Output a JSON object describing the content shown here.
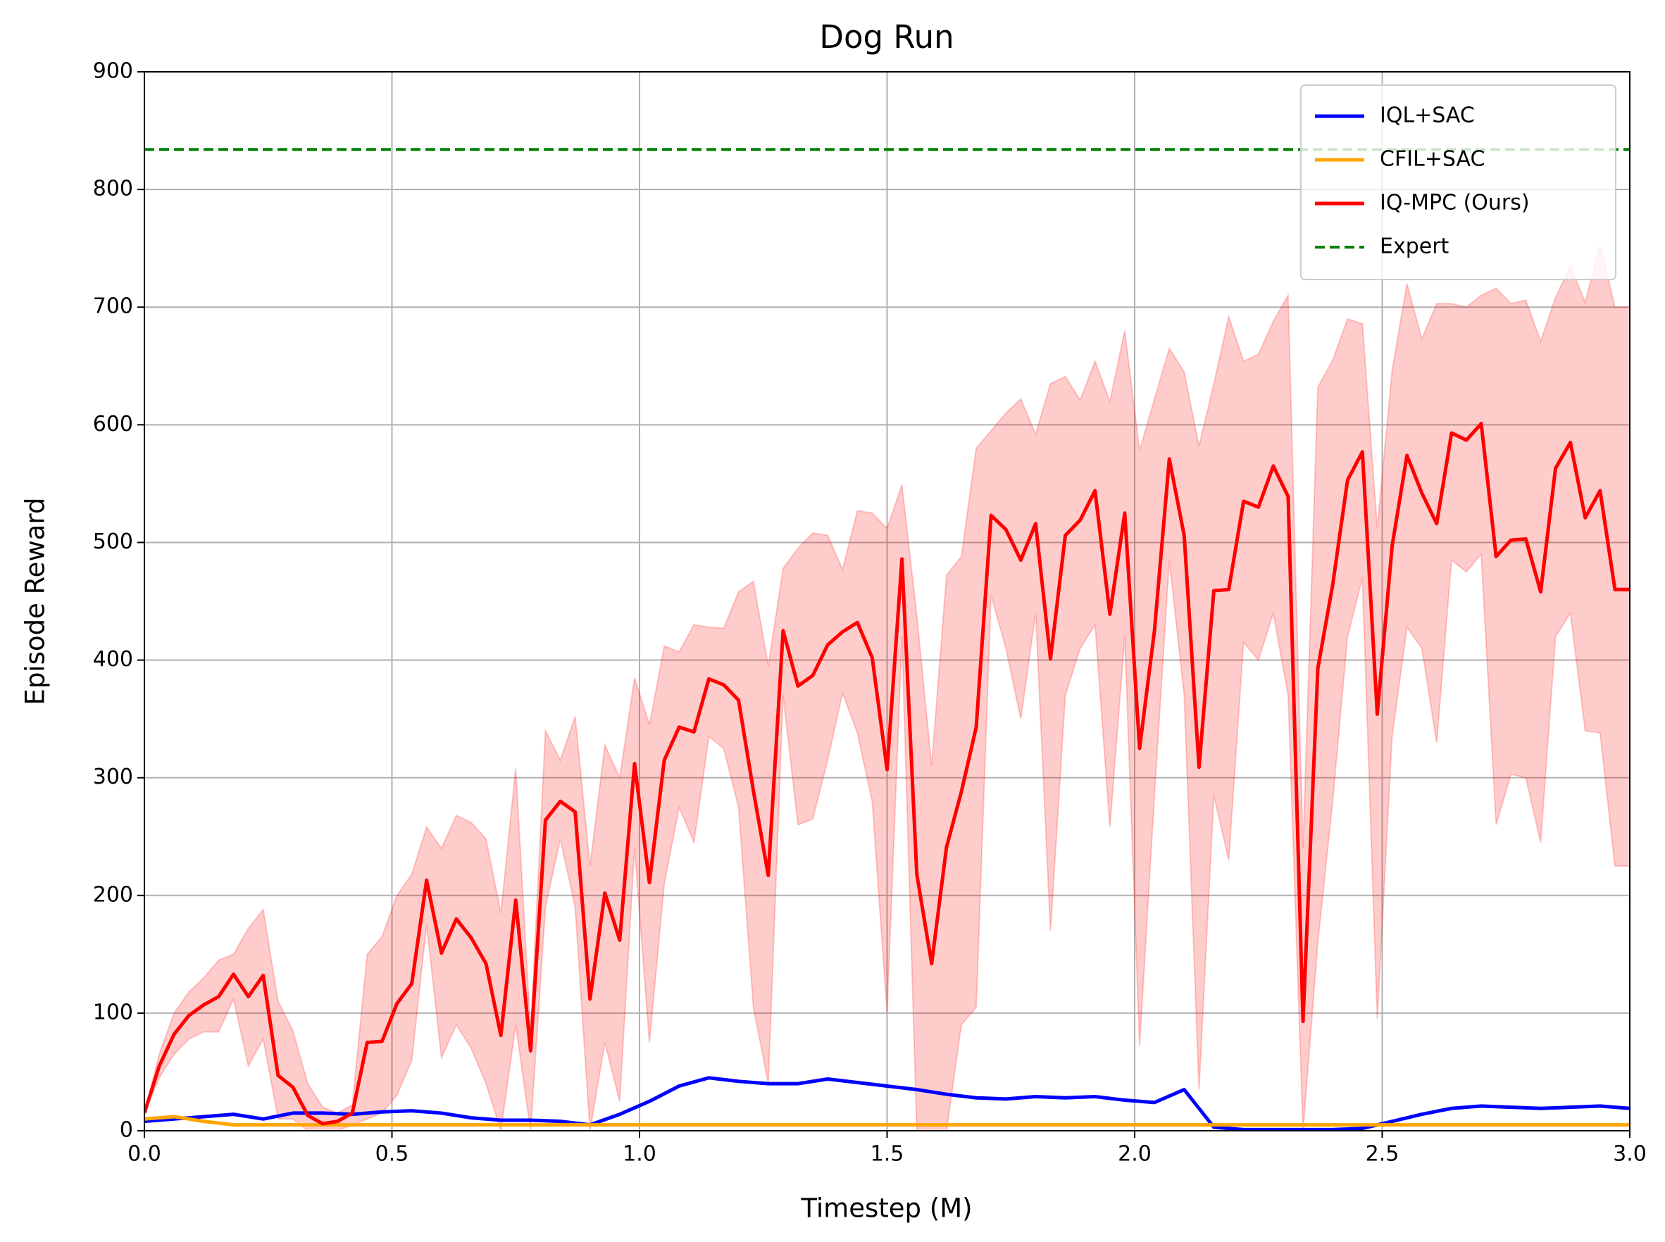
{
  "chart_data": {
    "type": "line",
    "title": "Dog Run",
    "x_label": "Timestep (M)",
    "y_label": "Episode Reward",
    "xlim": [
      0,
      3
    ],
    "ylim": [
      0,
      900
    ],
    "xticks": [
      {
        "value": 0,
        "label": "0.0"
      },
      0.5,
      {
        "value": 1,
        "label": "1.0"
      },
      1.5,
      {
        "value": 2,
        "label": "2.0"
      },
      2.5,
      {
        "value": 3,
        "label": "3.0"
      }
    ],
    "yticks": [
      0,
      100,
      200,
      300,
      400,
      500,
      600,
      700,
      800,
      900
    ],
    "grid": true,
    "legend": "upper right",
    "series": [
      {
        "name": "IQL+SAC",
        "color": "#0000ff",
        "x": [
          0,
          0.06,
          0.12,
          0.18,
          0.24,
          0.3,
          0.36,
          0.42,
          0.48,
          0.54,
          0.6,
          0.66,
          0.72,
          0.78,
          0.84,
          0.9,
          0.96,
          1.02,
          1.08,
          1.14,
          1.2,
          1.26,
          1.32,
          1.38,
          1.44,
          1.5,
          1.56,
          1.62,
          1.68,
          1.74,
          1.8,
          1.86,
          1.92,
          1.98,
          2.04,
          2.1,
          2.16,
          2.22,
          2.28,
          2.34,
          2.4,
          2.46,
          2.52,
          2.58,
          2.64,
          2.7,
          2.76,
          2.82,
          2.88,
          2.94,
          3.0
        ],
        "values": [
          8,
          10,
          12,
          14,
          10,
          15,
          15,
          14,
          16,
          17,
          15,
          11,
          9,
          9,
          8,
          5,
          14,
          25,
          38,
          45,
          42,
          40,
          40,
          44,
          41,
          38,
          35,
          31,
          28,
          27,
          29,
          28,
          29,
          26,
          24,
          35,
          3,
          1,
          1,
          1,
          1,
          2,
          8,
          14,
          19,
          21,
          20,
          19,
          20,
          21,
          19
        ]
      },
      {
        "name": "CFIL+SAC",
        "color": "#ffa500",
        "x": [
          0,
          0.06,
          0.12,
          0.18,
          0.24,
          0.3,
          0.36,
          0.42,
          0.48,
          0.54,
          0.6,
          0.66,
          0.72,
          0.78,
          0.84,
          0.9,
          0.96,
          1.02,
          1.08,
          1.14,
          1.2,
          1.26,
          1.32,
          1.38,
          1.44,
          1.5,
          1.56,
          1.62,
          1.68,
          1.74,
          1.8,
          1.86,
          1.92,
          1.98,
          2.04,
          2.1,
          2.16,
          2.22,
          2.28,
          2.34,
          2.4,
          2.46,
          2.52,
          2.58,
          2.64,
          2.7,
          2.76,
          2.82,
          2.88,
          2.94,
          3.0
        ],
        "values": [
          10,
          12,
          8,
          5,
          5,
          5,
          5,
          5,
          5,
          5,
          5,
          5,
          5,
          5,
          5,
          5,
          5,
          5,
          5,
          5,
          5,
          5,
          5,
          5,
          5,
          5,
          5,
          5,
          5,
          5,
          5,
          5,
          5,
          5,
          5,
          5,
          5,
          5,
          5,
          5,
          5,
          5,
          5,
          5,
          5,
          5,
          5,
          5,
          5,
          5,
          5
        ]
      },
      {
        "name": "IQ-MPC (Ours)",
        "color": "#ff0000",
        "x": [
          0,
          0.03,
          0.06,
          0.09,
          0.12,
          0.15,
          0.18,
          0.21,
          0.24,
          0.27,
          0.3,
          0.33,
          0.36,
          0.39,
          0.42,
          0.45,
          0.48,
          0.51,
          0.54,
          0.57,
          0.6,
          0.63,
          0.66,
          0.69,
          0.72,
          0.75,
          0.78,
          0.81,
          0.84,
          0.87,
          0.9,
          0.93,
          0.96,
          0.99,
          1.02,
          1.05,
          1.08,
          1.11,
          1.14,
          1.17,
          1.2,
          1.23,
          1.26,
          1.29,
          1.32,
          1.35,
          1.38,
          1.41,
          1.44,
          1.47,
          1.5,
          1.53,
          1.56,
          1.59,
          1.62,
          1.65,
          1.68,
          1.71,
          1.74,
          1.77,
          1.8,
          1.83,
          1.86,
          1.89,
          1.92,
          1.95,
          1.98,
          2.01,
          2.04,
          2.07,
          2.1,
          2.13,
          2.16,
          2.19,
          2.22,
          2.25,
          2.28,
          2.31,
          2.34,
          2.37,
          2.4,
          2.43,
          2.46,
          2.49,
          2.52,
          2.55,
          2.58,
          2.61,
          2.64,
          2.67,
          2.7,
          2.73,
          2.76,
          2.79,
          2.82,
          2.85,
          2.88,
          2.91,
          2.94,
          2.97,
          3.0
        ],
        "values": [
          15,
          55,
          82,
          98,
          107,
          114,
          133,
          114,
          132,
          47,
          37,
          13,
          6,
          8,
          15,
          75,
          76,
          108,
          125,
          213,
          151,
          180,
          164,
          142,
          81,
          196,
          68,
          264,
          280,
          271,
          112,
          202,
          162,
          312,
          211,
          315,
          343,
          339,
          384,
          379,
          366,
          289,
          217,
          425,
          378,
          387,
          413,
          424,
          432,
          402,
          307,
          486,
          218,
          142,
          241,
          288,
          343,
          523,
          511,
          485,
          516,
          401,
          506,
          519,
          544,
          439,
          525,
          325,
          425,
          571,
          506,
          309,
          459,
          460,
          535,
          530,
          565,
          539,
          93,
          393,
          464,
          553,
          577,
          354,
          497,
          574,
          542,
          516,
          593,
          587,
          601,
          488,
          502,
          503,
          458,
          563,
          585,
          521,
          544,
          460,
          460
        ],
        "upper": [
          15,
          65,
          100,
          118,
          130,
          145,
          150,
          172,
          188,
          110,
          85,
          40,
          20,
          15,
          22,
          150,
          165,
          200,
          218,
          258,
          240,
          268,
          262,
          248,
          185,
          308,
          85,
          340,
          315,
          352,
          225,
          328,
          300,
          385,
          345,
          412,
          407,
          430,
          428,
          427,
          458,
          467,
          395,
          478,
          495,
          508,
          506,
          477,
          527,
          525,
          512,
          549,
          438,
          310,
          472,
          488,
          580,
          595,
          610,
          622,
          592,
          635,
          641,
          621,
          654,
          620,
          680,
          578,
          622,
          665,
          645,
          582,
          635,
          692,
          654,
          660,
          688,
          710,
          240,
          632,
          655,
          690,
          686,
          512,
          646,
          720,
          673,
          703,
          703,
          700,
          710,
          716,
          703,
          706,
          671,
          708,
          735,
          704,
          753,
          700,
          700
        ],
        "lower": [
          15,
          45,
          65,
          78,
          84,
          84,
          112,
          55,
          78,
          10,
          10,
          0,
          0,
          0,
          5,
          10,
          15,
          30,
          60,
          175,
          62,
          90,
          70,
          40,
          0,
          90,
          0,
          190,
          248,
          190,
          0,
          75,
          25,
          240,
          75,
          210,
          275,
          245,
          335,
          325,
          275,
          105,
          40,
          370,
          260,
          265,
          315,
          372,
          338,
          280,
          100,
          420,
          0,
          0,
          0,
          90,
          105,
          455,
          410,
          350,
          440,
          170,
          370,
          410,
          430,
          258,
          420,
          72,
          285,
          485,
          370,
          35,
          285,
          230,
          415,
          400,
          440,
          370,
          0,
          160,
          280,
          420,
          470,
          95,
          335,
          428,
          410,
          330,
          485,
          475,
          490,
          260,
          303,
          300,
          245,
          420,
          440,
          340,
          338,
          225,
          225
        ]
      },
      {
        "name": "Expert",
        "color": "#008000",
        "dashed": true,
        "x": [
          0,
          3.0
        ],
        "values": [
          834,
          834
        ]
      }
    ]
  }
}
